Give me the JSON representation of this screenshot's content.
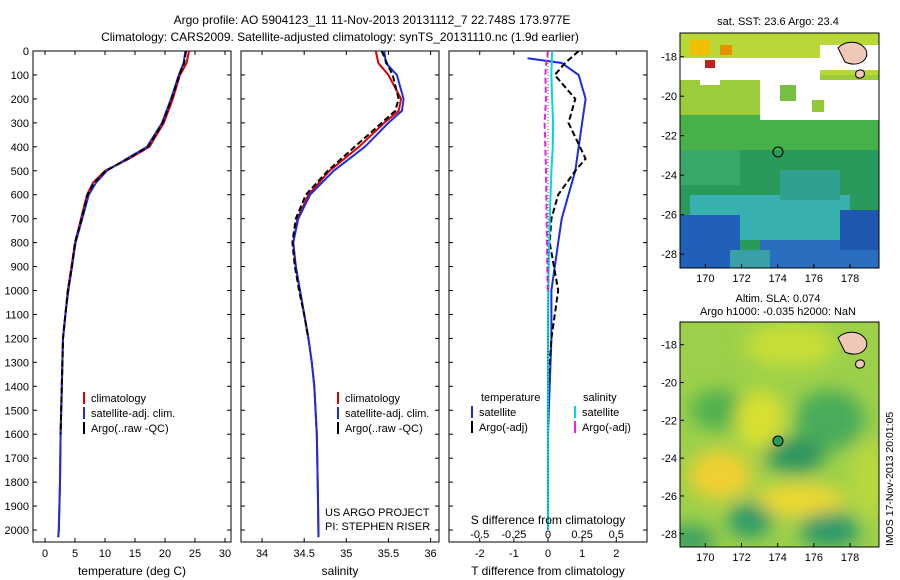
{
  "header": {
    "line1": "Argo profile: AO 5904123_11 11-Nov-2013 20131112_7 22.748S 173.977E",
    "line2": "Climatology: CARS2009. Satellite-adjusted climatology: synTS_20131110.nc (1.9d earlier)"
  },
  "colors": {
    "clim": "#e00000",
    "sat": "#1a2ee0",
    "argo": "#000000",
    "sat_s": "#00d8e0",
    "argo_s": "#ee22dd"
  },
  "depth_axis": {
    "range": [
      0,
      2050
    ],
    "ticks": [
      "0",
      "100",
      "200",
      "300",
      "400",
      "500",
      "600",
      "700",
      "800",
      "900",
      "1000",
      "1100",
      "1200",
      "1300",
      "1400",
      "1500",
      "1600",
      "1700",
      "1800",
      "1900",
      "2000"
    ]
  },
  "chart_data": [
    {
      "id": "temperature",
      "type": "line",
      "xlabel": "temperature (deg C)",
      "xlim": [
        -2,
        31
      ],
      "xticks": [
        "0",
        "5",
        "10",
        "15",
        "20",
        "25",
        "30"
      ],
      "legend": [
        "climatology",
        "satellite-adj. clim.",
        "Argo(..raw -QC)"
      ],
      "series": [
        {
          "name": "climatology",
          "x": [
            24.0,
            23.6,
            22.5,
            21.3,
            19.8,
            17.4,
            14.0,
            10.0,
            8.0,
            7.0,
            6.0,
            5.0,
            4.4,
            3.8,
            3.4,
            3.0,
            2.8,
            2.6,
            2.5,
            2.3,
            2.2
          ],
          "y": [
            0,
            50,
            100,
            200,
            300,
            400,
            450,
            500,
            550,
            600,
            700,
            800,
            900,
            1000,
            1100,
            1200,
            1400,
            1600,
            1800,
            2000,
            2030
          ]
        },
        {
          "name": "satellite-adj. clim.",
          "x": [
            23.4,
            23.1,
            22.3,
            21.0,
            19.5,
            17.0,
            13.6,
            10.3,
            8.5,
            7.3,
            6.2,
            5.1,
            4.5,
            3.9,
            3.4,
            3.0,
            2.8,
            2.6,
            2.5,
            2.3,
            2.2
          ],
          "y": [
            0,
            50,
            100,
            200,
            300,
            400,
            450,
            500,
            550,
            600,
            700,
            800,
            900,
            1000,
            1100,
            1200,
            1400,
            1600,
            1800,
            2000,
            2030
          ]
        },
        {
          "name": "Argo(..raw -QC)",
          "x": [
            23.5,
            23.2,
            22.4,
            21.1,
            19.6,
            17.2,
            13.8,
            10.1,
            8.2,
            7.1,
            6.1,
            5.0,
            4.5,
            3.8,
            3.4,
            3.0,
            2.8,
            2.6
          ],
          "y": [
            0,
            50,
            100,
            200,
            300,
            400,
            450,
            500,
            550,
            600,
            700,
            800,
            900,
            1000,
            1100,
            1200,
            1400,
            1600
          ]
        }
      ]
    },
    {
      "id": "salinity",
      "type": "line",
      "xlabel": "salinity",
      "xlim": [
        33.75,
        36.1
      ],
      "xticks": [
        "34",
        "34.5",
        "35",
        "35.5",
        "36"
      ],
      "legend": [
        "climatology",
        "satellite-adj. clim.",
        "Argo(..raw -QC)"
      ],
      "credits": [
        "US ARGO PROJECT",
        "PI: STEPHEN RISER"
      ],
      "series": [
        {
          "name": "climatology",
          "x": [
            35.35,
            35.38,
            35.5,
            35.65,
            35.62,
            35.45,
            35.15,
            34.8,
            34.55,
            34.42,
            34.37,
            34.4,
            34.45,
            34.5,
            34.55,
            34.59,
            34.62,
            34.65,
            34.66,
            34.67
          ],
          "y": [
            0,
            50,
            100,
            200,
            250,
            300,
            400,
            500,
            600,
            700,
            800,
            900,
            1000,
            1100,
            1200,
            1300,
            1400,
            1600,
            1800,
            2030
          ]
        },
        {
          "name": "satellite-adj. clim.",
          "x": [
            35.45,
            35.47,
            35.6,
            35.68,
            35.66,
            35.5,
            35.22,
            34.85,
            34.57,
            34.43,
            34.37,
            34.4,
            34.45,
            34.5,
            34.55,
            34.59,
            34.62,
            34.65,
            34.66,
            34.67
          ],
          "y": [
            0,
            50,
            100,
            200,
            250,
            300,
            400,
            500,
            600,
            700,
            800,
            900,
            1000,
            1100,
            1200,
            1300,
            1400,
            1600,
            1800,
            2030
          ]
        },
        {
          "name": "Argo(..raw -QC)",
          "x": [
            35.42,
            35.48,
            35.55,
            35.62,
            35.58,
            35.42,
            35.1,
            34.78,
            34.52,
            34.4,
            34.36,
            34.39,
            34.44,
            34.5,
            34.55
          ],
          "y": [
            0,
            50,
            100,
            200,
            250,
            300,
            400,
            500,
            600,
            700,
            800,
            900,
            1000,
            1100,
            1200
          ]
        }
      ]
    },
    {
      "id": "difference",
      "type": "line",
      "xlabel": "T difference from climatology",
      "xlabel_top": "S difference from climatology",
      "xlim": [
        -2.9,
        2.9
      ],
      "xticks": [
        "-2",
        "-1",
        "0",
        "1",
        "2"
      ],
      "xticks_s": [
        "-0.5",
        "-0.25",
        "0",
        "0.25",
        "0.5"
      ],
      "legend_titles": [
        "temperature",
        "salinity"
      ],
      "legend": [
        "satellite",
        "Argo(-adj)",
        "satellite",
        "Argo(-adj)"
      ],
      "series": [
        {
          "name": "temperature satellite",
          "x": [
            -0.6,
            0.4,
            0.9,
            1.1,
            1.0,
            0.9,
            0.8,
            0.6,
            0.4,
            0.3,
            0.2,
            0.1,
            0.1,
            0.05,
            0.0,
            0.0,
            0.0
          ],
          "y": [
            30,
            50,
            100,
            200,
            300,
            400,
            500,
            600,
            700,
            800,
            900,
            1000,
            1200,
            1400,
            1600,
            1800,
            2000
          ]
        },
        {
          "name": "temperature Argo(-adj)",
          "x": [
            0.9,
            0.5,
            0.2,
            0.8,
            0.6,
            1.1,
            0.8,
            0.3,
            0.1,
            0.05,
            0.3,
            0.1,
            0.0,
            0.0,
            0.0
          ],
          "y": [
            0,
            50,
            100,
            200,
            300,
            450,
            500,
            600,
            700,
            800,
            1000,
            1200,
            1400,
            1500,
            1600
          ]
        },
        {
          "name": "salinity satellite",
          "x": [
            0.12,
            0.1,
            0.12,
            0.15,
            0.14,
            0.1,
            0.05,
            0.02,
            0.0,
            0.0,
            0.0,
            0.0
          ],
          "y": [
            0,
            100,
            200,
            300,
            400,
            500,
            700,
            900,
            1100,
            1400,
            1700,
            2000
          ]
        },
        {
          "name": "salinity Argo(-adj)",
          "x": [
            0.0,
            -0.05,
            -0.08,
            -0.06,
            -0.1,
            -0.08,
            -0.06,
            -0.05,
            -0.04,
            -0.03,
            -0.02,
            -0.01
          ],
          "y": [
            0,
            50,
            100,
            200,
            300,
            400,
            500,
            600,
            700,
            800,
            900,
            1000
          ]
        }
      ]
    }
  ],
  "map_sst": {
    "title": "sat. SST: 23.6 Argo: 23.4",
    "xticks": [
      "170",
      "172",
      "174",
      "176",
      "178"
    ],
    "yticks": [
      "-18",
      "-20",
      "-22",
      "-24",
      "-26",
      "-28"
    ]
  },
  "map_sla": {
    "title1": "Altim. SLA: 0.074",
    "title2": "Argo h1000: -0.035 h2000: NaN",
    "xticks": [
      "170",
      "172",
      "174",
      "176",
      "178"
    ],
    "yticks": [
      "-18",
      "-20",
      "-22",
      "-24",
      "-26",
      "-28"
    ]
  },
  "side_stamp": "IMOS 17-Nov-2013 20:01:05"
}
